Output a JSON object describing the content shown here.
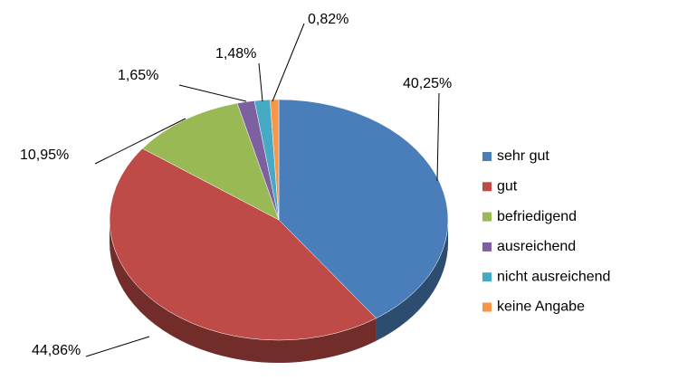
{
  "chart_data": {
    "type": "pie",
    "categories": [
      "sehr gut",
      "gut",
      "befriedigend",
      "ausreichend",
      "nicht ausreichend",
      "keine Angabe"
    ],
    "values": [
      40.25,
      44.86,
      10.95,
      1.65,
      1.48,
      0.82
    ],
    "value_labels": [
      "40,25%",
      "44,86%",
      "10,95%",
      "1,65%",
      "1,48%",
      "0,82%"
    ],
    "colors": [
      "#4a7ebb",
      "#be4b48",
      "#98b954",
      "#7d60a0",
      "#46aac5",
      "#f79646"
    ],
    "legend": "right"
  }
}
